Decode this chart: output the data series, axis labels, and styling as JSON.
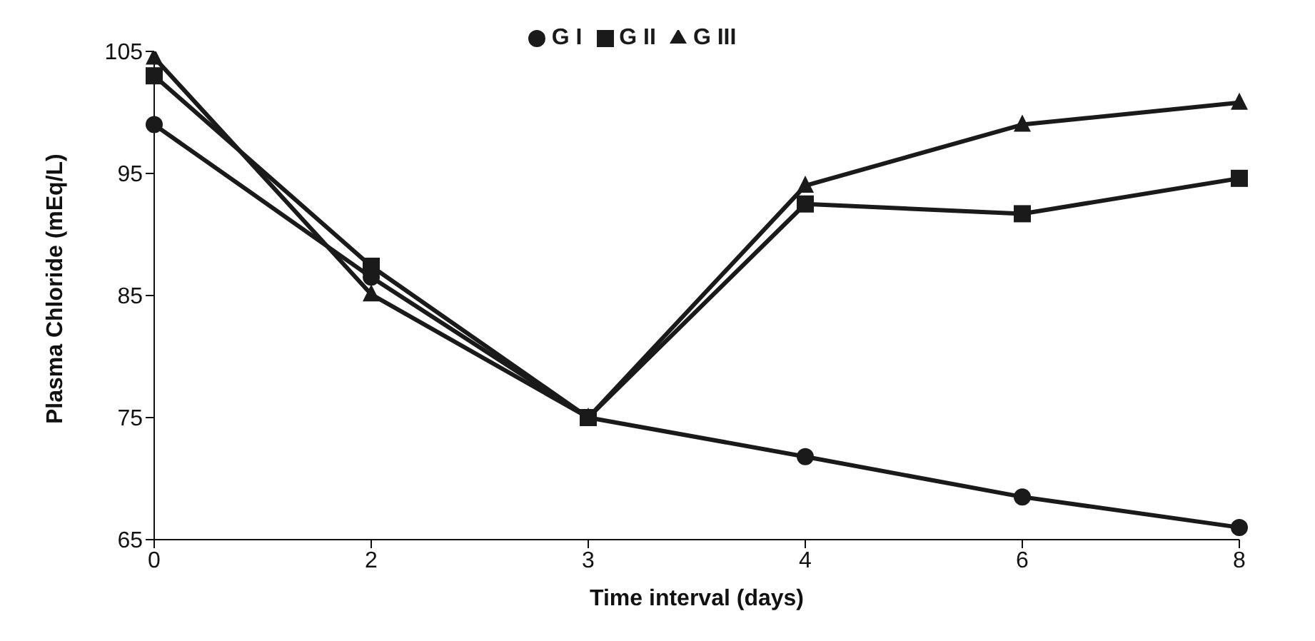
{
  "chart_data": {
    "type": "line",
    "xlabel": "Time interval (days)",
    "ylabel": "Plasma Chloride (mEq/L)",
    "categories": [
      "0",
      "2",
      "3",
      "4",
      "6",
      "8"
    ],
    "series": [
      {
        "name": "G I",
        "color": "#1a1a1a",
        "marker": "circle",
        "values": [
          99,
          86.5,
          75,
          71.8,
          68.5,
          66
        ]
      },
      {
        "name": "G II",
        "color": "#1a1a1a",
        "marker": "square",
        "values": [
          103,
          87.4,
          75,
          92.5,
          91.7,
          94.6
        ]
      },
      {
        "name": "G III",
        "color": "#1a1a1a",
        "marker": "triangle",
        "values": [
          104.5,
          85.1,
          75,
          94,
          99,
          100.8
        ]
      }
    ],
    "ylim": [
      65,
      105
    ],
    "yticks": [
      65,
      75,
      85,
      95,
      105
    ],
    "grid": false,
    "legend": "top",
    "line_style": "solid"
  }
}
